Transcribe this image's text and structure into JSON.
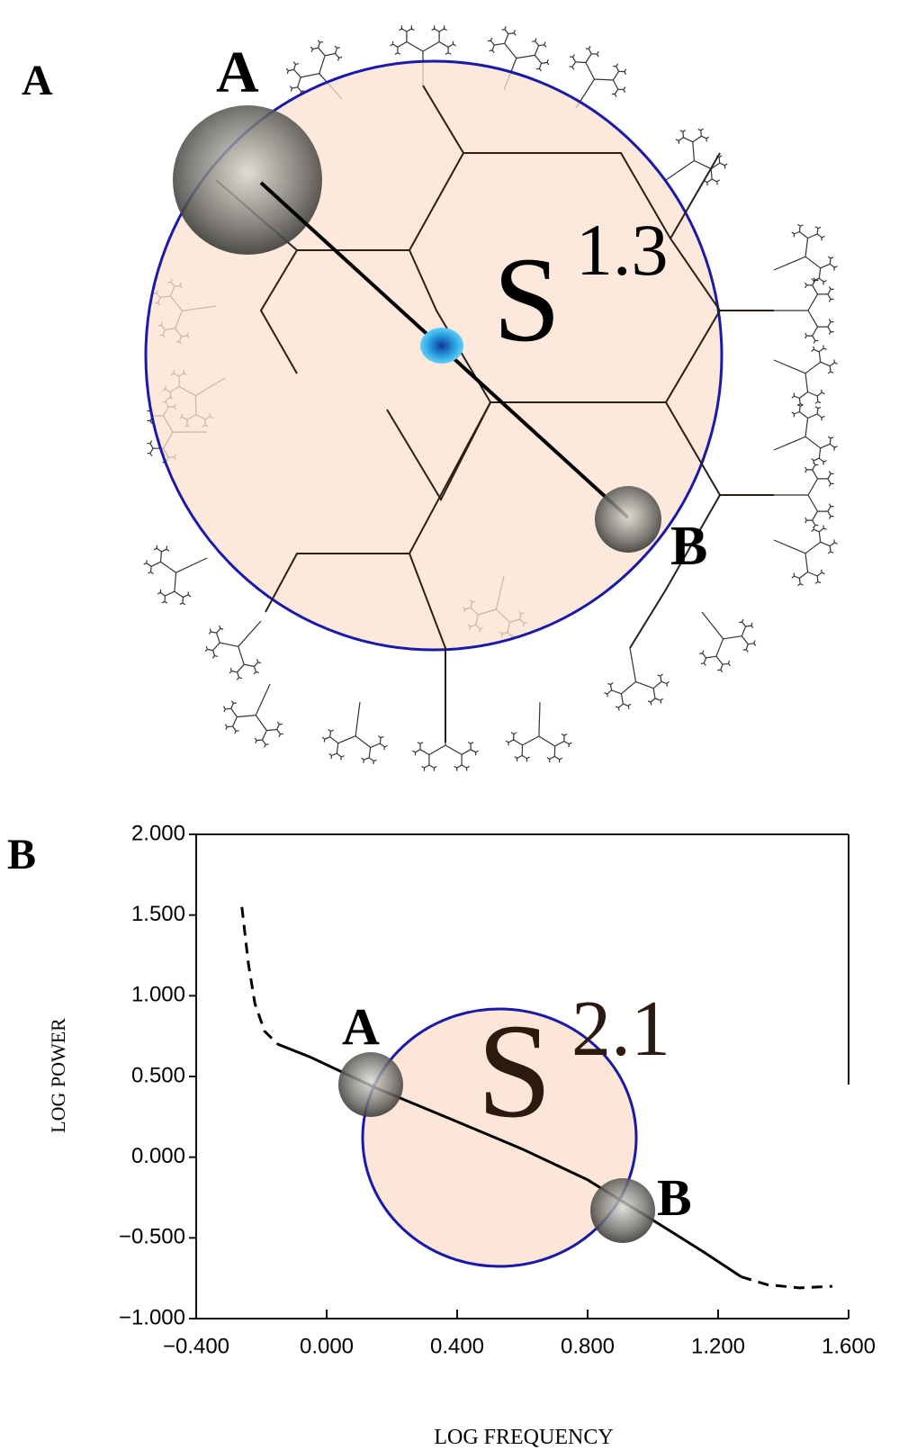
{
  "panel_a": {
    "label": "A",
    "points": [
      "A",
      "B"
    ],
    "dimension_label": {
      "base": "S",
      "exponent": "1.3"
    }
  },
  "chart_data": {
    "type": "line",
    "panel_label": "B",
    "y_label": "LOG POWER",
    "x_label": "LOG FREQUENCY",
    "xlim": [
      -0.4,
      1.6
    ],
    "ylim": [
      -1,
      2
    ],
    "xticks": [
      {
        "value": -0.4,
        "label": "−0.400"
      },
      {
        "value": 0,
        "label": "0.000"
      },
      {
        "value": 0.4,
        "label": "0.400"
      },
      {
        "value": 0.8,
        "label": "0.800"
      },
      {
        "value": 1.2,
        "label": "1.200"
      },
      {
        "value": 1.6,
        "label": "1.600"
      }
    ],
    "yticks": [
      {
        "value": 2,
        "label": "2.000"
      },
      {
        "value": 1.5,
        "label": "1.500"
      },
      {
        "value": 1,
        "label": "1.000"
      },
      {
        "value": 0.5,
        "label": "0.500"
      },
      {
        "value": 0,
        "label": "0.000"
      },
      {
        "value": -0.5,
        "label": "−0.500"
      },
      {
        "value": -1,
        "label": "−1.000"
      }
    ],
    "series": [
      {
        "color": "#000000",
        "dash": true,
        "x": [
          -0.26,
          -0.24,
          -0.22,
          -0.19,
          -0.15
        ],
        "values": [
          1.55,
          1.2,
          0.95,
          0.78,
          0.7
        ]
      },
      {
        "color": "#000000",
        "dash": false,
        "x": [
          -0.15,
          -0.05,
          0.15,
          0.4,
          0.6,
          0.8,
          1.0,
          1.15,
          1.27
        ],
        "values": [
          0.7,
          0.62,
          0.43,
          0.22,
          0.05,
          -0.14,
          -0.39,
          -0.58,
          -0.74
        ]
      },
      {
        "color": "#000000",
        "dash": true,
        "x": [
          1.27,
          1.35,
          1.45,
          1.55
        ],
        "values": [
          -0.74,
          -0.79,
          -0.81,
          -0.8
        ]
      }
    ],
    "annotations": [
      "A",
      "B"
    ],
    "dimension_label": {
      "base": "S",
      "exponent": "2.1"
    }
  }
}
